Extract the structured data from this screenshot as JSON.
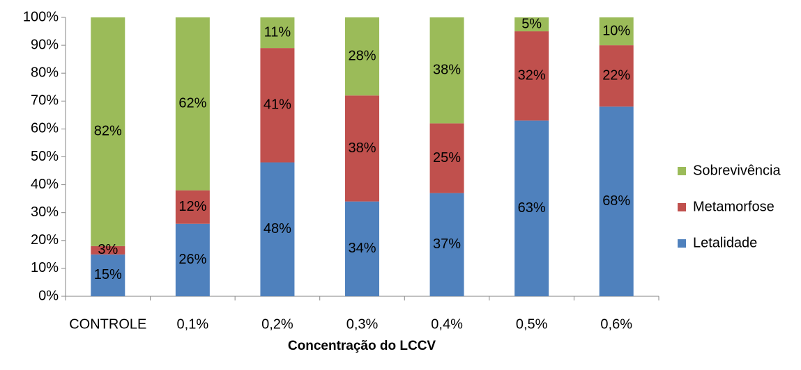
{
  "chart_data": {
    "type": "bar",
    "stacked": true,
    "percent_stacked": true,
    "categories": [
      "CONTROLE",
      "0,1%",
      "0,2%",
      "0,3%",
      "0,4%",
      "0,5%",
      "0,6%"
    ],
    "series": [
      {
        "name": "Letalidade",
        "color": "#4F81BD",
        "values": [
          15,
          26,
          48,
          34,
          37,
          63,
          68
        ],
        "labels": [
          "15%",
          "26%",
          "48%",
          "34%",
          "37%",
          "63%",
          "68%"
        ]
      },
      {
        "name": "Metamorfose",
        "color": "#C0504D",
        "values": [
          3,
          12,
          41,
          38,
          25,
          32,
          22
        ],
        "labels": [
          "3%",
          "12%",
          "41%",
          "38%",
          "25%",
          "32%",
          "22%"
        ]
      },
      {
        "name": "Sobrevivência",
        "color": "#9BBB59",
        "values": [
          82,
          62,
          11,
          28,
          38,
          5,
          10
        ],
        "labels": [
          "82%",
          "62%",
          "11%",
          "28%",
          "38%",
          "5%",
          "10%"
        ]
      }
    ],
    "xlabel": "Concentração do LCCV",
    "ylabel": "",
    "ylim": [
      0,
      100
    ],
    "yticks": [
      "0%",
      "10%",
      "20%",
      "30%",
      "40%",
      "50%",
      "60%",
      "70%",
      "80%",
      "90%",
      "100%"
    ],
    "grid": false,
    "legend": "right",
    "legend_order": [
      "Sobrevivência",
      "Metamorfose",
      "Letalidade"
    ]
  }
}
